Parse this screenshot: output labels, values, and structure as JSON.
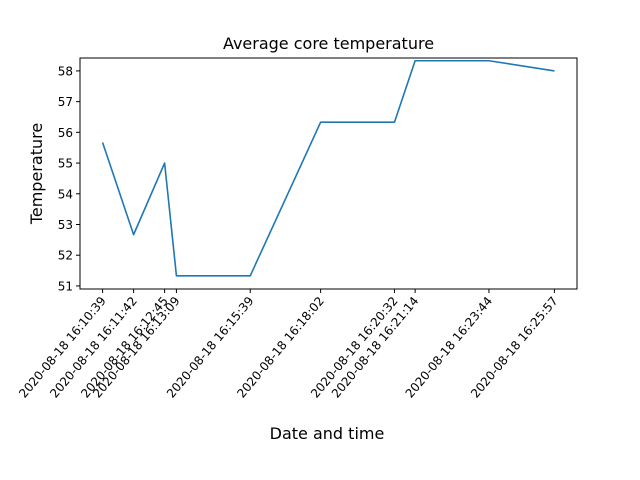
{
  "chart_data": {
    "type": "line",
    "title": "Average core temperature",
    "xlabel": "Date and time",
    "ylabel": "Temperature",
    "x": [
      "2020-08-18 16:10:39",
      "2020-08-18 16:11:42",
      "2020-08-18 16:12:45",
      "2020-08-18 16:13:09",
      "2020-08-18 16:15:39",
      "2020-08-18 16:18:02",
      "2020-08-18 16:20:32",
      "2020-08-18 16:21:14",
      "2020-08-18 16:23:44",
      "2020-08-18 16:25:57"
    ],
    "series": [
      {
        "values": [
          55.67,
          52.67,
          55.0,
          51.33,
          51.33,
          56.33,
          56.33,
          58.33,
          58.33,
          58.0
        ]
      }
    ],
    "ylim": [
      51,
      58.3
    ],
    "yticks": [
      51,
      52,
      53,
      54,
      55,
      56,
      57,
      58
    ],
    "line_color": "#1f77b4",
    "grid": false
  }
}
